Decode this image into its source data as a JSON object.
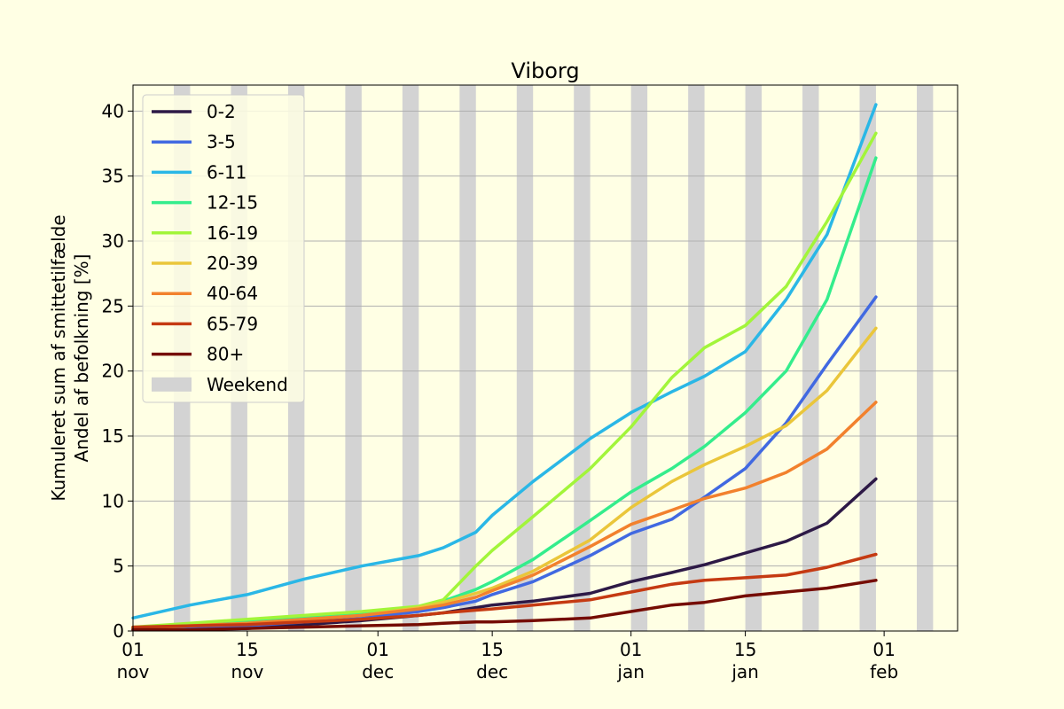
{
  "chart_data": {
    "type": "line",
    "title": "Viborg",
    "ylabel_line1": "Kumuleret sum af smittetilfælde",
    "ylabel_line2": "Andel af befolkning [%]",
    "xlim": [
      "2021-11-01",
      "2022-02-10"
    ],
    "ylim": [
      0,
      42
    ],
    "yticks": [
      0,
      5,
      10,
      15,
      20,
      25,
      30,
      35,
      40
    ],
    "xticks": [
      {
        "date": "2021-11-01",
        "day": "01",
        "month": "nov"
      },
      {
        "date": "2021-11-15",
        "day": "15",
        "month": "nov"
      },
      {
        "date": "2021-12-01",
        "day": "01",
        "month": "dec"
      },
      {
        "date": "2021-12-15",
        "day": "15",
        "month": "dec"
      },
      {
        "date": "2022-01-01",
        "day": "01",
        "month": "jan"
      },
      {
        "date": "2022-01-15",
        "day": "15",
        "month": "jan"
      },
      {
        "date": "2022-02-01",
        "day": "01",
        "month": "feb"
      }
    ],
    "grid": "horizontal",
    "legend_position": "top-left",
    "weekend": {
      "name": "Weekend",
      "color": "#d3d3d3"
    },
    "x": [
      "2021-11-01",
      "2021-11-08",
      "2021-11-15",
      "2021-11-22",
      "2021-11-29",
      "2021-12-06",
      "2021-12-09",
      "2021-12-13",
      "2021-12-15",
      "2021-12-20",
      "2021-12-27",
      "2022-01-01",
      "2022-01-06",
      "2022-01-10",
      "2022-01-15",
      "2022-01-20",
      "2022-01-25",
      "2022-01-31"
    ],
    "series": [
      {
        "name": "0-2",
        "color": "#2d1946",
        "values": [
          0.1,
          0.1,
          0.2,
          0.5,
          0.8,
          1.2,
          1.4,
          1.8,
          2.0,
          2.3,
          2.9,
          3.8,
          4.5,
          5.1,
          6.0,
          6.9,
          8.3,
          11.7
        ]
      },
      {
        "name": "3-5",
        "color": "#4169e1",
        "values": [
          0.2,
          0.3,
          0.4,
          0.7,
          1.0,
          1.5,
          1.8,
          2.3,
          2.8,
          3.8,
          5.8,
          7.5,
          8.6,
          10.3,
          12.5,
          16.0,
          20.5,
          25.7
        ]
      },
      {
        "name": "6-11",
        "color": "#2ab7e6",
        "values": [
          1.0,
          2.0,
          2.8,
          4.0,
          5.0,
          5.8,
          6.4,
          7.6,
          8.9,
          11.5,
          14.8,
          16.8,
          18.4,
          19.6,
          21.5,
          25.5,
          30.5,
          40.5
        ]
      },
      {
        "name": "12-15",
        "color": "#34ed8c",
        "values": [
          0.2,
          0.5,
          0.8,
          1.1,
          1.3,
          1.8,
          2.3,
          3.2,
          3.8,
          5.5,
          8.5,
          10.7,
          12.5,
          14.2,
          16.8,
          20.0,
          25.5,
          36.4
        ]
      },
      {
        "name": "16-19",
        "color": "#a2f53a",
        "values": [
          0.3,
          0.6,
          0.9,
          1.2,
          1.5,
          1.9,
          2.4,
          5.0,
          6.2,
          8.8,
          12.5,
          15.7,
          19.5,
          21.8,
          23.5,
          26.5,
          31.5,
          38.3
        ]
      },
      {
        "name": "20-39",
        "color": "#eac63a",
        "values": [
          0.2,
          0.4,
          0.6,
          0.9,
          1.2,
          1.8,
          2.2,
          2.9,
          3.3,
          4.6,
          7.0,
          9.5,
          11.5,
          12.8,
          14.2,
          15.8,
          18.5,
          23.3
        ]
      },
      {
        "name": "40-64",
        "color": "#f2812d",
        "values": [
          0.2,
          0.4,
          0.6,
          0.9,
          1.2,
          1.7,
          2.0,
          2.6,
          3.1,
          4.3,
          6.5,
          8.2,
          9.3,
          10.2,
          11.0,
          12.2,
          14.0,
          17.6
        ]
      },
      {
        "name": "65-79",
        "color": "#c53a12",
        "values": [
          0.3,
          0.4,
          0.5,
          0.7,
          0.9,
          1.2,
          1.4,
          1.6,
          1.7,
          2.0,
          2.4,
          3.0,
          3.6,
          3.9,
          4.1,
          4.3,
          4.9,
          5.9
        ]
      },
      {
        "name": "80+",
        "color": "#750c03",
        "values": [
          0.1,
          0.1,
          0.2,
          0.3,
          0.4,
          0.5,
          0.6,
          0.7,
          0.7,
          0.8,
          1.0,
          1.5,
          2.0,
          2.2,
          2.7,
          3.0,
          3.3,
          3.9
        ]
      }
    ]
  }
}
